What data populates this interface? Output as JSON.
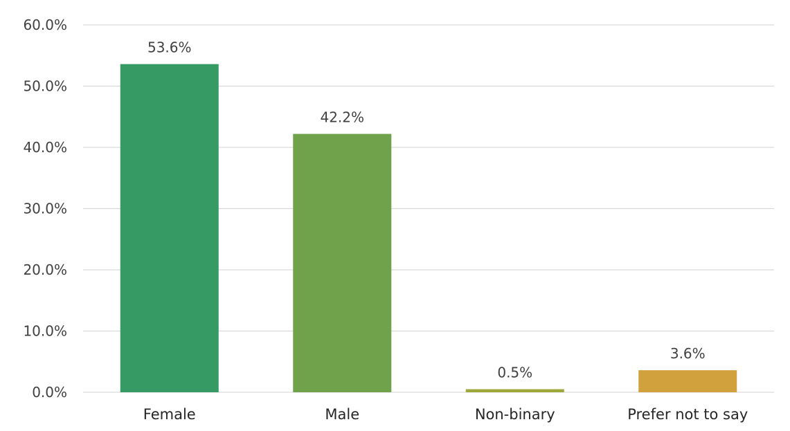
{
  "chart_data": {
    "type": "bar",
    "title": "",
    "xlabel": "",
    "ylabel": "",
    "categories": [
      "Female",
      "Male",
      "Non-binary",
      "Prefer not to say"
    ],
    "values": [
      53.6,
      42.2,
      0.5,
      3.6
    ],
    "data_labels": [
      "53.6%",
      "42.2%",
      "0.5%",
      "3.6%"
    ],
    "bar_colors": [
      "#359a63",
      "#6fa24b",
      "#9ea83a",
      "#d1a13d"
    ],
    "ylim": [
      0,
      60
    ],
    "yticks": [
      0,
      10,
      20,
      30,
      40,
      50,
      60
    ],
    "ytick_labels": [
      "0.0%",
      "10.0%",
      "20.0%",
      "30.0%",
      "40.0%",
      "50.0%",
      "60.0%"
    ],
    "grid": true,
    "legend": "none"
  }
}
